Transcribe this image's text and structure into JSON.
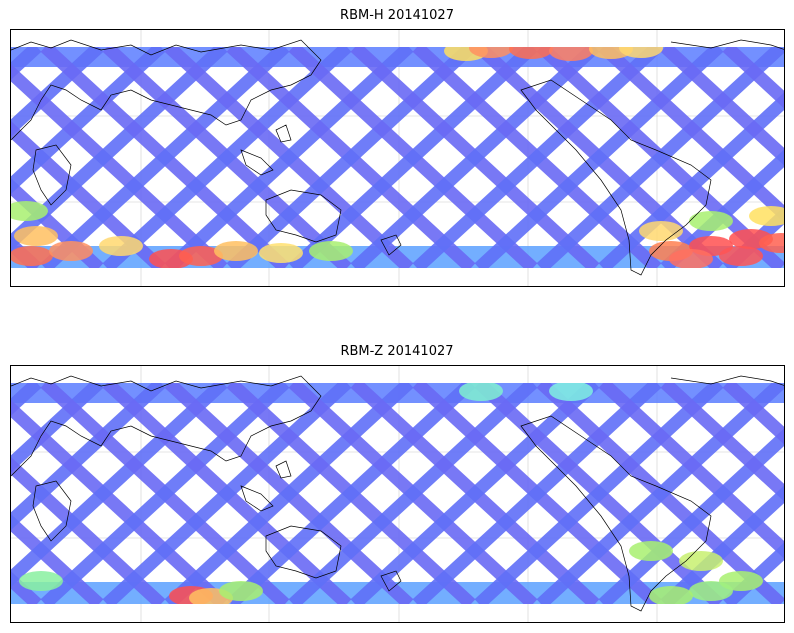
{
  "panels": [
    {
      "title": "RBM-H 20141027",
      "hotspots": [
        {
          "lon": 455,
          "lat": 50,
          "c": "#ffe060"
        },
        {
          "lon": 480,
          "lat": 47,
          "c": "#ff9060"
        },
        {
          "lon": 520,
          "lat": 48,
          "c": "#ff7050"
        },
        {
          "lon": 560,
          "lat": 50,
          "c": "#ff8060"
        },
        {
          "lon": 600,
          "lat": 48,
          "c": "#ffc060"
        },
        {
          "lon": 630,
          "lat": 47,
          "c": "#ffd870"
        },
        {
          "lon": 15,
          "lat": 210,
          "c": "#a8f070"
        },
        {
          "lon": 25,
          "lat": 235,
          "c": "#ffc060"
        },
        {
          "lon": 20,
          "lat": 255,
          "c": "#ff7050"
        },
        {
          "lon": 60,
          "lat": 250,
          "c": "#ff9060"
        },
        {
          "lon": 110,
          "lat": 245,
          "c": "#ffd870"
        },
        {
          "lon": 160,
          "lat": 258,
          "c": "#ff5050"
        },
        {
          "lon": 190,
          "lat": 255,
          "c": "#ff6050"
        },
        {
          "lon": 225,
          "lat": 250,
          "c": "#ffc060"
        },
        {
          "lon": 270,
          "lat": 252,
          "c": "#ffe070"
        },
        {
          "lon": 320,
          "lat": 250,
          "c": "#a8f070"
        },
        {
          "lon": 660,
          "lat": 250,
          "c": "#ff8050"
        },
        {
          "lon": 700,
          "lat": 245,
          "c": "#ff5050"
        },
        {
          "lon": 740,
          "lat": 238,
          "c": "#ff5050"
        },
        {
          "lon": 770,
          "lat": 242,
          "c": "#ff6050"
        },
        {
          "lon": 730,
          "lat": 255,
          "c": "#ff5555"
        },
        {
          "lon": 680,
          "lat": 258,
          "c": "#ff7060"
        },
        {
          "lon": 650,
          "lat": 230,
          "c": "#ffd870"
        },
        {
          "lon": 700,
          "lat": 220,
          "c": "#a8f070"
        },
        {
          "lon": 760,
          "lat": 215,
          "c": "#ffe060"
        }
      ]
    },
    {
      "title": "RBM-Z 20141027",
      "hotspots": [
        {
          "lon": 180,
          "lat": 595,
          "c": "#ff5050"
        },
        {
          "lon": 200,
          "lat": 597,
          "c": "#ffc060"
        },
        {
          "lon": 230,
          "lat": 590,
          "c": "#a8f070"
        },
        {
          "lon": 640,
          "lat": 550,
          "c": "#a8f070"
        },
        {
          "lon": 690,
          "lat": 560,
          "c": "#c8f070"
        },
        {
          "lon": 730,
          "lat": 580,
          "c": "#a8f070"
        },
        {
          "lon": 700,
          "lat": 590,
          "c": "#a0f080"
        },
        {
          "lon": 660,
          "lat": 595,
          "c": "#a8f070"
        },
        {
          "lon": 30,
          "lat": 580,
          "c": "#88f0a0"
        },
        {
          "lon": 470,
          "lat": 390,
          "c": "#80f0d0"
        },
        {
          "lon": 560,
          "lat": 390,
          "c": "#80f0e0"
        }
      ]
    }
  ]
}
